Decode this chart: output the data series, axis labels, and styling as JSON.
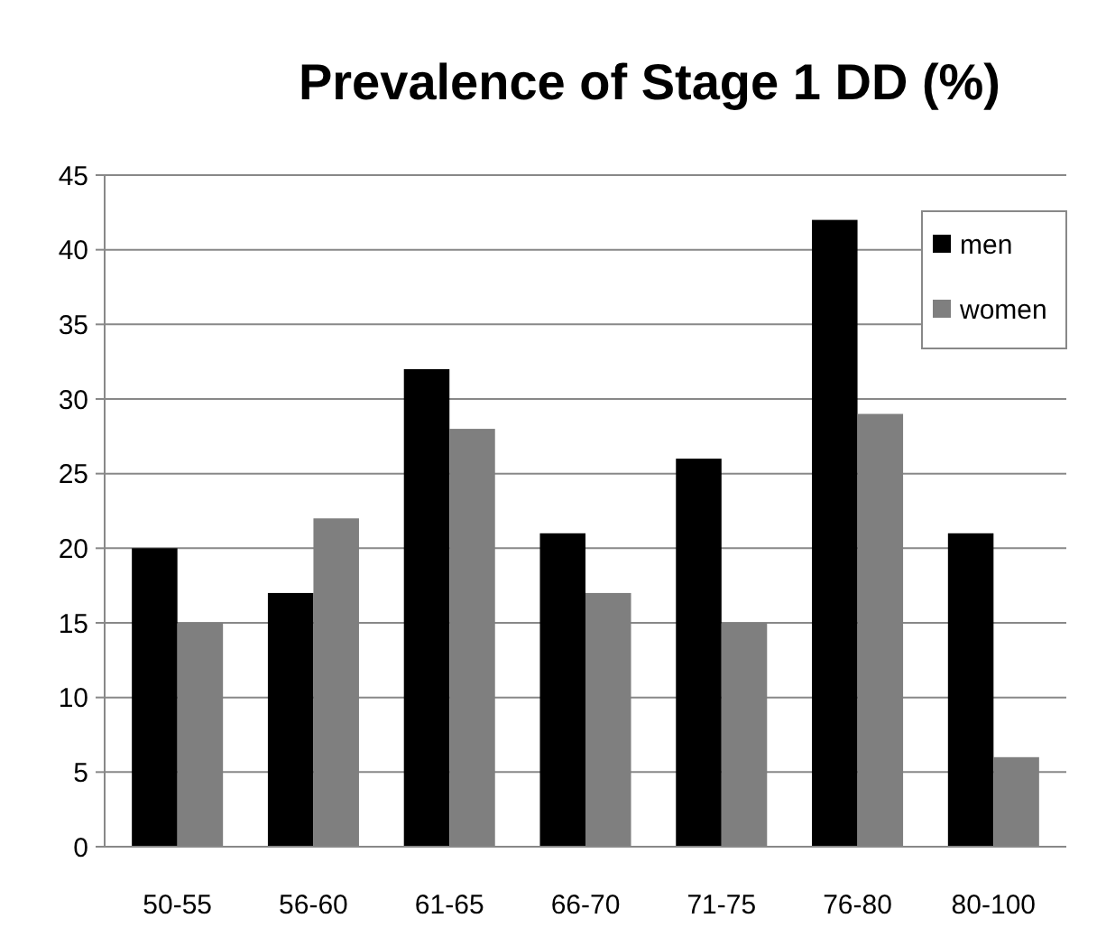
{
  "chart_data": {
    "type": "bar",
    "title": "Prevalence of Stage 1 DD (%)",
    "categories": [
      "50-55",
      "56-60",
      "61-65",
      "66-70",
      "71-75",
      "76-80",
      "80-100"
    ],
    "series": [
      {
        "name": "men",
        "color": "#000000",
        "values": [
          20,
          17,
          32,
          21,
          26,
          42,
          21
        ]
      },
      {
        "name": "women",
        "color": "#7f7f7f",
        "values": [
          15,
          22,
          28,
          17,
          15,
          29,
          6
        ]
      }
    ],
    "ylim": [
      0,
      45
    ],
    "yticks": [
      0,
      5,
      10,
      15,
      20,
      25,
      30,
      35,
      40,
      45
    ],
    "grid": "y",
    "legend": "top right"
  }
}
